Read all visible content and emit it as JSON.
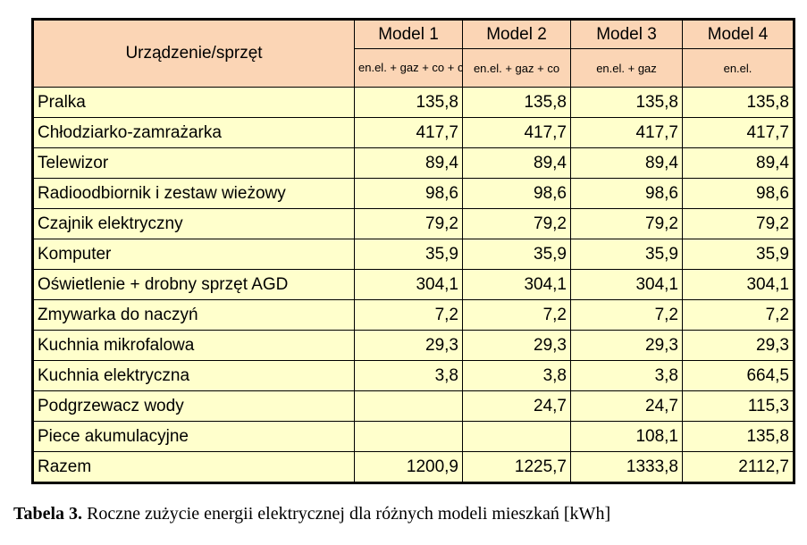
{
  "table": {
    "corner_label": "Urządzenie/sprzęt",
    "columns": [
      {
        "model": "Model 1",
        "desc": "en.el. + gaz + co + cwu"
      },
      {
        "model": "Model 2",
        "desc": "en.el. + gaz + co"
      },
      {
        "model": "Model 3",
        "desc": "en.el. + gaz"
      },
      {
        "model": "Model 4",
        "desc": "en.el."
      }
    ],
    "rows": [
      {
        "label": "Pralka",
        "values": [
          "135,8",
          "135,8",
          "135,8",
          "135,8"
        ]
      },
      {
        "label": "Chłodziarko-zamrażarka",
        "values": [
          "417,7",
          "417,7",
          "417,7",
          "417,7"
        ]
      },
      {
        "label": "Telewizor",
        "values": [
          "89,4",
          "89,4",
          "89,4",
          "89,4"
        ]
      },
      {
        "label": "Radioodbiornik i zestaw wieżowy",
        "values": [
          "98,6",
          "98,6",
          "98,6",
          "98,6"
        ]
      },
      {
        "label": "Czajnik elektryczny",
        "values": [
          "79,2",
          "79,2",
          "79,2",
          "79,2"
        ]
      },
      {
        "label": "Komputer",
        "values": [
          "35,9",
          "35,9",
          "35,9",
          "35,9"
        ]
      },
      {
        "label": "Oświetlenie + drobny sprzęt AGD",
        "values": [
          "304,1",
          "304,1",
          "304,1",
          "304,1"
        ]
      },
      {
        "label": "Zmywarka do naczyń",
        "values": [
          "7,2",
          "7,2",
          "7,2",
          "7,2"
        ]
      },
      {
        "label": "Kuchnia mikrofalowa",
        "values": [
          "29,3",
          "29,3",
          "29,3",
          "29,3"
        ]
      },
      {
        "label": "Kuchnia elektryczna",
        "values": [
          "3,8",
          "3,8",
          "3,8",
          "664,5"
        ]
      },
      {
        "label": "Podgrzewacz wody",
        "values": [
          "",
          "24,7",
          "24,7",
          "115,3"
        ]
      },
      {
        "label": "Piece akumulacyjne",
        "values": [
          "",
          "",
          "108,1",
          "135,8"
        ]
      }
    ],
    "total": {
      "label": "Razem",
      "values": [
        "1200,9",
        "1225,7",
        "1333,8",
        "2112,7"
      ]
    }
  },
  "caption": {
    "label": "Tabela 3.",
    "text": " Roczne zużycie energii elektrycznej dla różnych modeli mieszkań [kWh]"
  },
  "colors": {
    "header_bg": "#fbd5b5",
    "body_bg": "#ffffcc",
    "border": "#000000"
  }
}
